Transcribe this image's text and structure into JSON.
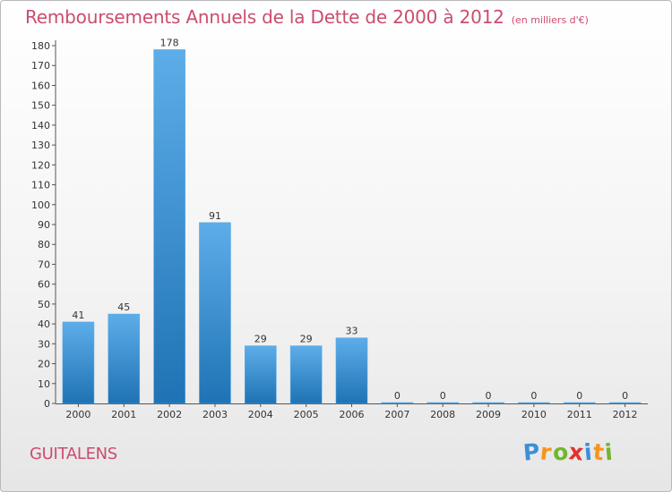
{
  "header": {
    "title": "Remboursements Annuels de la Dette de 2000 à 2012",
    "subtitle": "(en milliers d'€)"
  },
  "commune": "GUITALENS",
  "brand": {
    "letters": [
      "P",
      "r",
      "o",
      "x",
      "i",
      "t",
      "i"
    ],
    "colors": [
      "#3b8fd8",
      "#f7941d",
      "#71b62c",
      "#e4312b",
      "#3b8fd8",
      "#f7941d",
      "#71b62c"
    ]
  },
  "colors": {
    "bar_light": "#5dade9",
    "bar_dark": "#1f73b4",
    "axis": "#555555",
    "grid": "#dddddd",
    "text": "#333333",
    "title": "#cc4c6e"
  },
  "chart_data": {
    "type": "bar",
    "categories": [
      "2000",
      "2001",
      "2002",
      "2003",
      "2004",
      "2005",
      "2006",
      "2007",
      "2008",
      "2009",
      "2010",
      "2011",
      "2012"
    ],
    "values": [
      41,
      45,
      178,
      91,
      29,
      29,
      33,
      0,
      0,
      0,
      0,
      0,
      0
    ],
    "ylim": [
      0,
      180
    ],
    "yticks": [
      0,
      10,
      20,
      30,
      40,
      50,
      60,
      70,
      80,
      90,
      100,
      110,
      120,
      130,
      140,
      150,
      160,
      170,
      180
    ],
    "grid": false,
    "data_labels": true
  }
}
